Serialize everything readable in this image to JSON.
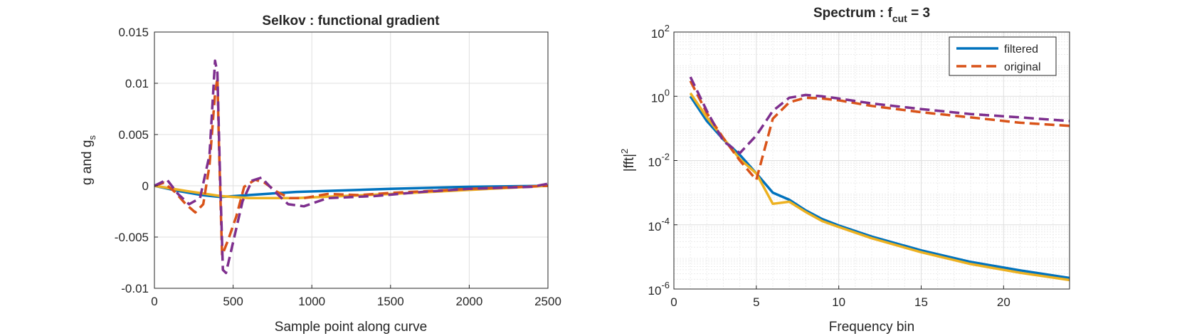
{
  "chart_data": [
    {
      "type": "line",
      "title": "Selkov : functional gradient",
      "xlabel": "Sample point along curve",
      "ylabel": "g and g",
      "ylabel_sub": "s",
      "xlim": [
        0,
        2500
      ],
      "ylim": [
        -0.01,
        0.015
      ],
      "xticks": [
        "0",
        "500",
        "1000",
        "1500",
        "2000",
        "2500"
      ],
      "yticks": [
        "-0.01",
        "-0.005",
        "0",
        "0.005",
        "0.01",
        "0.015"
      ],
      "grid": true,
      "series": [
        {
          "color": "#0072BD",
          "dash": "solid",
          "x": [
            0,
            150,
            300,
            420,
            600,
            900,
            1500,
            2000,
            2500
          ],
          "y": [
            0,
            -0.0005,
            -0.0009,
            -0.0011,
            -0.0009,
            -0.0006,
            -0.0003,
            -0.0001,
            0
          ]
        },
        {
          "color": "#EDB120",
          "dash": "solid",
          "x": [
            0,
            200,
            420,
            600,
            900,
            1200,
            1500,
            2000,
            2500
          ],
          "y": [
            0,
            -0.0005,
            -0.001,
            -0.0012,
            -0.0012,
            -0.001,
            -0.0008,
            -0.0004,
            0
          ]
        },
        {
          "color": "#D95319",
          "dash": "dashed",
          "x": [
            0,
            60,
            130,
            200,
            260,
            310,
            350,
            385,
            400,
            410,
            430,
            470,
            520,
            570,
            640,
            700,
            780,
            860,
            950,
            1100,
            1300,
            1500,
            2000,
            2500
          ],
          "y": [
            0,
            0.0003,
            -0.0006,
            -0.0018,
            -0.0026,
            -0.0018,
            0.002,
            0.009,
            0.0105,
            0.004,
            -0.0068,
            -0.0052,
            -0.003,
            -0.0001,
            0.0006,
            0.0003,
            -0.0006,
            -0.0012,
            -0.0012,
            -0.0008,
            -0.0009,
            -0.0007,
            -0.0003,
            0
          ]
        },
        {
          "color": "#7E2F8E",
          "dash": "dashed",
          "x": [
            0,
            80,
            150,
            220,
            290,
            350,
            385,
            400,
            415,
            435,
            455,
            500,
            560,
            620,
            680,
            760,
            850,
            950,
            1100,
            1400,
            1700,
            2000,
            2400,
            2500
          ],
          "y": [
            0,
            0.0006,
            -0.0008,
            -0.0018,
            -0.0012,
            0.003,
            0.0122,
            0.011,
            0.002,
            -0.0082,
            -0.0085,
            -0.0055,
            -0.0015,
            0.0005,
            0.0008,
            -0.0005,
            -0.0018,
            -0.002,
            -0.0012,
            -0.001,
            -0.0006,
            -0.0003,
            -0.0001,
            0.0002
          ]
        }
      ]
    },
    {
      "type": "line",
      "title": "Spectrum : f",
      "title_sub": "cut",
      "title_tail": " = 3",
      "xlabel": "Frequency bin",
      "ylabel": "|fft|",
      "ylabel_sup": "2",
      "xlim": [
        0,
        24
      ],
      "ylim_log10": [
        -6,
        2
      ],
      "yscale": "log",
      "xticks": [
        "0",
        "5",
        "10",
        "15",
        "20"
      ],
      "ytick_base": "10",
      "ytick_exponents": [
        "-6",
        "-4",
        "-2",
        "0",
        "2"
      ],
      "grid": true,
      "legend_position": "top-right",
      "legend": [
        {
          "label": "filtered",
          "color": "#0072BD",
          "dash": "solid"
        },
        {
          "label": "original",
          "color": "#D95319",
          "dash": "dashed"
        }
      ],
      "series": [
        {
          "color": "#0072BD",
          "dash": "solid",
          "x": [
            1,
            2,
            3,
            4,
            5,
            6,
            7,
            8,
            9,
            10,
            12,
            15,
            18,
            21,
            24
          ],
          "y": [
            1.0,
            0.17,
            0.045,
            0.015,
            0.004,
            0.001,
            0.0006,
            0.00028,
            0.00015,
            9.5e-05,
            4.3e-05,
            1.6e-05,
            7e-06,
            3.8e-06,
            2.2e-06
          ]
        },
        {
          "color": "#EDB120",
          "dash": "solid",
          "x": [
            1,
            2,
            3,
            4,
            5,
            6,
            7,
            8,
            9,
            10,
            12,
            15,
            18,
            21,
            24
          ],
          "y": [
            1.25,
            0.22,
            0.05,
            0.011,
            0.004,
            0.00045,
            0.00052,
            0.00025,
            0.00013,
            8.5e-05,
            3.8e-05,
            1.4e-05,
            6e-06,
            3.2e-06,
            1.9e-06
          ]
        },
        {
          "color": "#D95319",
          "dash": "dashed",
          "x": [
            1,
            2,
            3,
            4,
            5,
            6,
            7,
            8,
            9,
            10,
            12,
            15,
            18,
            21,
            24
          ],
          "y": [
            3.0,
            0.3,
            0.05,
            0.01,
            0.0025,
            0.2,
            0.65,
            0.9,
            0.85,
            0.75,
            0.5,
            0.32,
            0.22,
            0.15,
            0.12
          ]
        },
        {
          "color": "#7E2F8E",
          "dash": "dashed",
          "x": [
            1,
            2,
            3,
            4,
            5,
            6,
            7,
            8,
            9,
            10,
            12,
            15,
            18,
            21,
            24
          ],
          "y": [
            4.0,
            0.35,
            0.04,
            0.017,
            0.06,
            0.35,
            0.9,
            1.1,
            1.0,
            0.85,
            0.6,
            0.4,
            0.28,
            0.22,
            0.17
          ]
        }
      ]
    }
  ]
}
